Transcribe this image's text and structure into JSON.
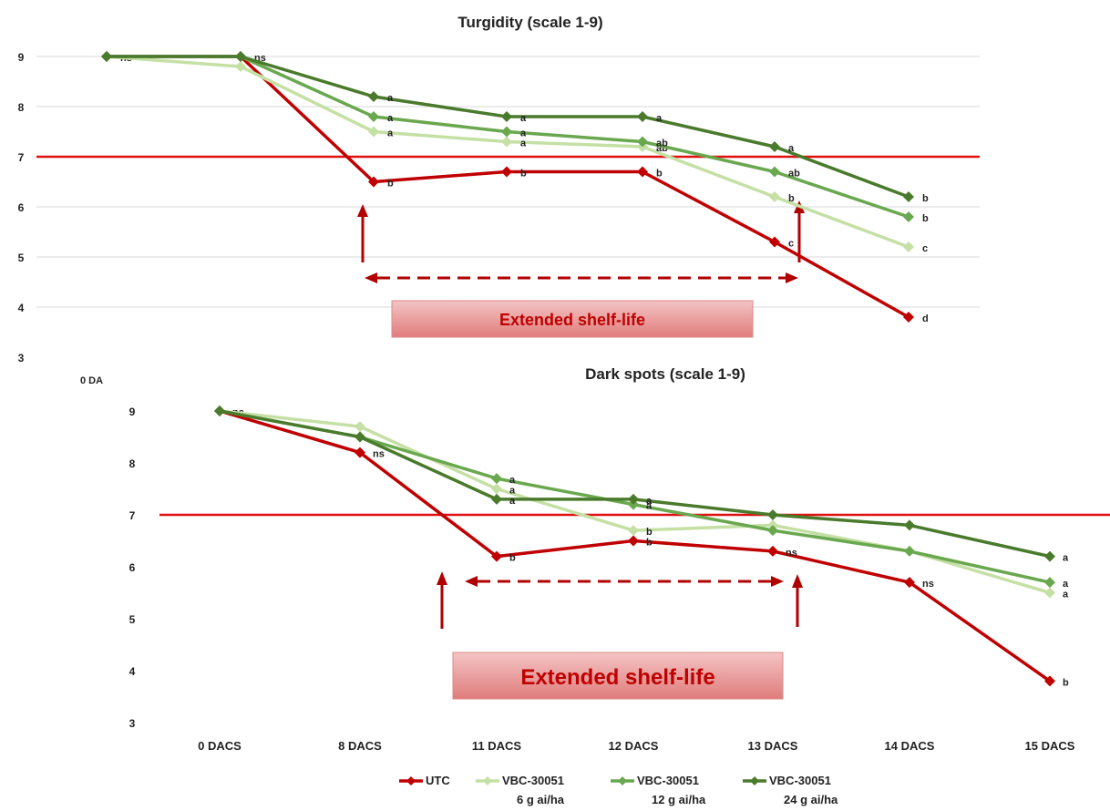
{
  "colors": {
    "utc": "#c00000",
    "g6": "#c5e0a5",
    "g12": "#6aa84f",
    "g24": "#4a7a2c",
    "threshold": "#e01010",
    "arrow": "#b00000",
    "box_fill_top": "#f2b8b8",
    "box_fill_bottom": "#e07c7c",
    "box_text": "#c00000",
    "grid": "#d9d9d9",
    "text": "#222222"
  },
  "legend": [
    {
      "key": "utc",
      "line1": "UTC",
      "line2": ""
    },
    {
      "key": "g6",
      "line1": "VBC-30051",
      "line2": "6 g ai/ha"
    },
    {
      "key": "g12",
      "line1": "VBC-30051",
      "line2": "12 g ai/ha"
    },
    {
      "key": "g24",
      "line1": "VBC-30051",
      "line2": "24 g ai/ha"
    }
  ],
  "chart_data": [
    {
      "type": "line",
      "title": "Turgidity (scale 1-9)",
      "y_ticks": [
        3,
        4,
        5,
        6,
        7,
        8,
        9
      ],
      "ylim": [
        3,
        9
      ],
      "x_label_printed": "0 DA",
      "x_positions": [
        "0 DACS",
        "8 DACS",
        "11 DACS",
        "12 DACS",
        "13 DACS",
        "14 DACS",
        "15 DACS"
      ],
      "threshold": 7,
      "grid": true,
      "annotation_box": "Extended shelf-life",
      "series": [
        {
          "key": "utc",
          "name": "UTC",
          "points": [
            [
              0,
              9
            ],
            [
              1,
              9
            ],
            [
              2,
              6.5
            ],
            [
              3,
              6.7
            ],
            [
              4,
              6.7
            ],
            [
              5,
              5.3
            ],
            [
              6,
              3.8
            ]
          ],
          "labels": [
            "ns",
            "ns",
            "b",
            "b",
            "b",
            "c",
            "d"
          ]
        },
        {
          "key": "g6",
          "name": "VBC-30051 6 g ai/ha",
          "points": [
            [
              0,
              9
            ],
            [
              1,
              8.8
            ],
            [
              2,
              7.5
            ],
            [
              3,
              7.3
            ],
            [
              4,
              7.2
            ],
            [
              5,
              6.2
            ],
            [
              6,
              5.2
            ]
          ],
          "labels": [
            "",
            "",
            "a",
            "a",
            "ab",
            "b",
            "c"
          ]
        },
        {
          "key": "g12",
          "name": "VBC-30051 12 g ai/ha",
          "points": [
            [
              0,
              9
            ],
            [
              1,
              9
            ],
            [
              2,
              7.8
            ],
            [
              3,
              7.5
            ],
            [
              4,
              7.3
            ],
            [
              5,
              6.7
            ],
            [
              6,
              5.8
            ]
          ],
          "labels": [
            "",
            "",
            "a",
            "a",
            "ab",
            "ab",
            "b"
          ]
        },
        {
          "key": "g24",
          "name": "VBC-30051 24 g ai/ha",
          "points": [
            [
              0,
              9
            ],
            [
              1,
              9
            ],
            [
              2,
              8.2
            ],
            [
              3,
              7.8
            ],
            [
              4,
              7.8
            ],
            [
              5,
              7.2
            ],
            [
              6,
              6.2
            ]
          ],
          "labels": [
            "",
            "",
            "a",
            "a",
            "a",
            "a",
            "b"
          ]
        }
      ]
    },
    {
      "type": "line",
      "title": "Dark spots (scale 1-9)",
      "y_ticks": [
        3,
        4,
        5,
        6,
        7,
        8,
        9
      ],
      "ylim": [
        3,
        9
      ],
      "x_categories": [
        "0 DACS",
        "8 DACS",
        "11 DACS",
        "12 DACS",
        "13 DACS",
        "14 DACS",
        "15 DACS"
      ],
      "threshold": 7,
      "grid": false,
      "annotation_box": "Extended shelf-life",
      "series": [
        {
          "key": "utc",
          "name": "UTC",
          "values": [
            9,
            8.2,
            6.2,
            6.5,
            6.3,
            5.7,
            3.8
          ],
          "labels": [
            "ns",
            "ns",
            "b",
            "b",
            "ns",
            "ns",
            "b"
          ]
        },
        {
          "key": "g6",
          "name": "VBC-30051 6 g ai/ha",
          "values": [
            9,
            8.7,
            7.5,
            6.7,
            6.8,
            6.3,
            5.5
          ],
          "labels": [
            "",
            "",
            "a",
            "b",
            "",
            "",
            "a"
          ]
        },
        {
          "key": "g12",
          "name": "VBC-30051 12 g ai/ha",
          "values": [
            9,
            8.5,
            7.7,
            7.2,
            6.7,
            6.3,
            5.7
          ],
          "labels": [
            "",
            "",
            "a",
            "a",
            "",
            "",
            "a"
          ]
        },
        {
          "key": "g24",
          "name": "VBC-30051 24 g ai/ha",
          "values": [
            9,
            8.5,
            7.3,
            7.3,
            7.0,
            6.8,
            6.2
          ],
          "labels": [
            "",
            "",
            "a",
            "a",
            "",
            "",
            "a"
          ]
        }
      ]
    }
  ]
}
